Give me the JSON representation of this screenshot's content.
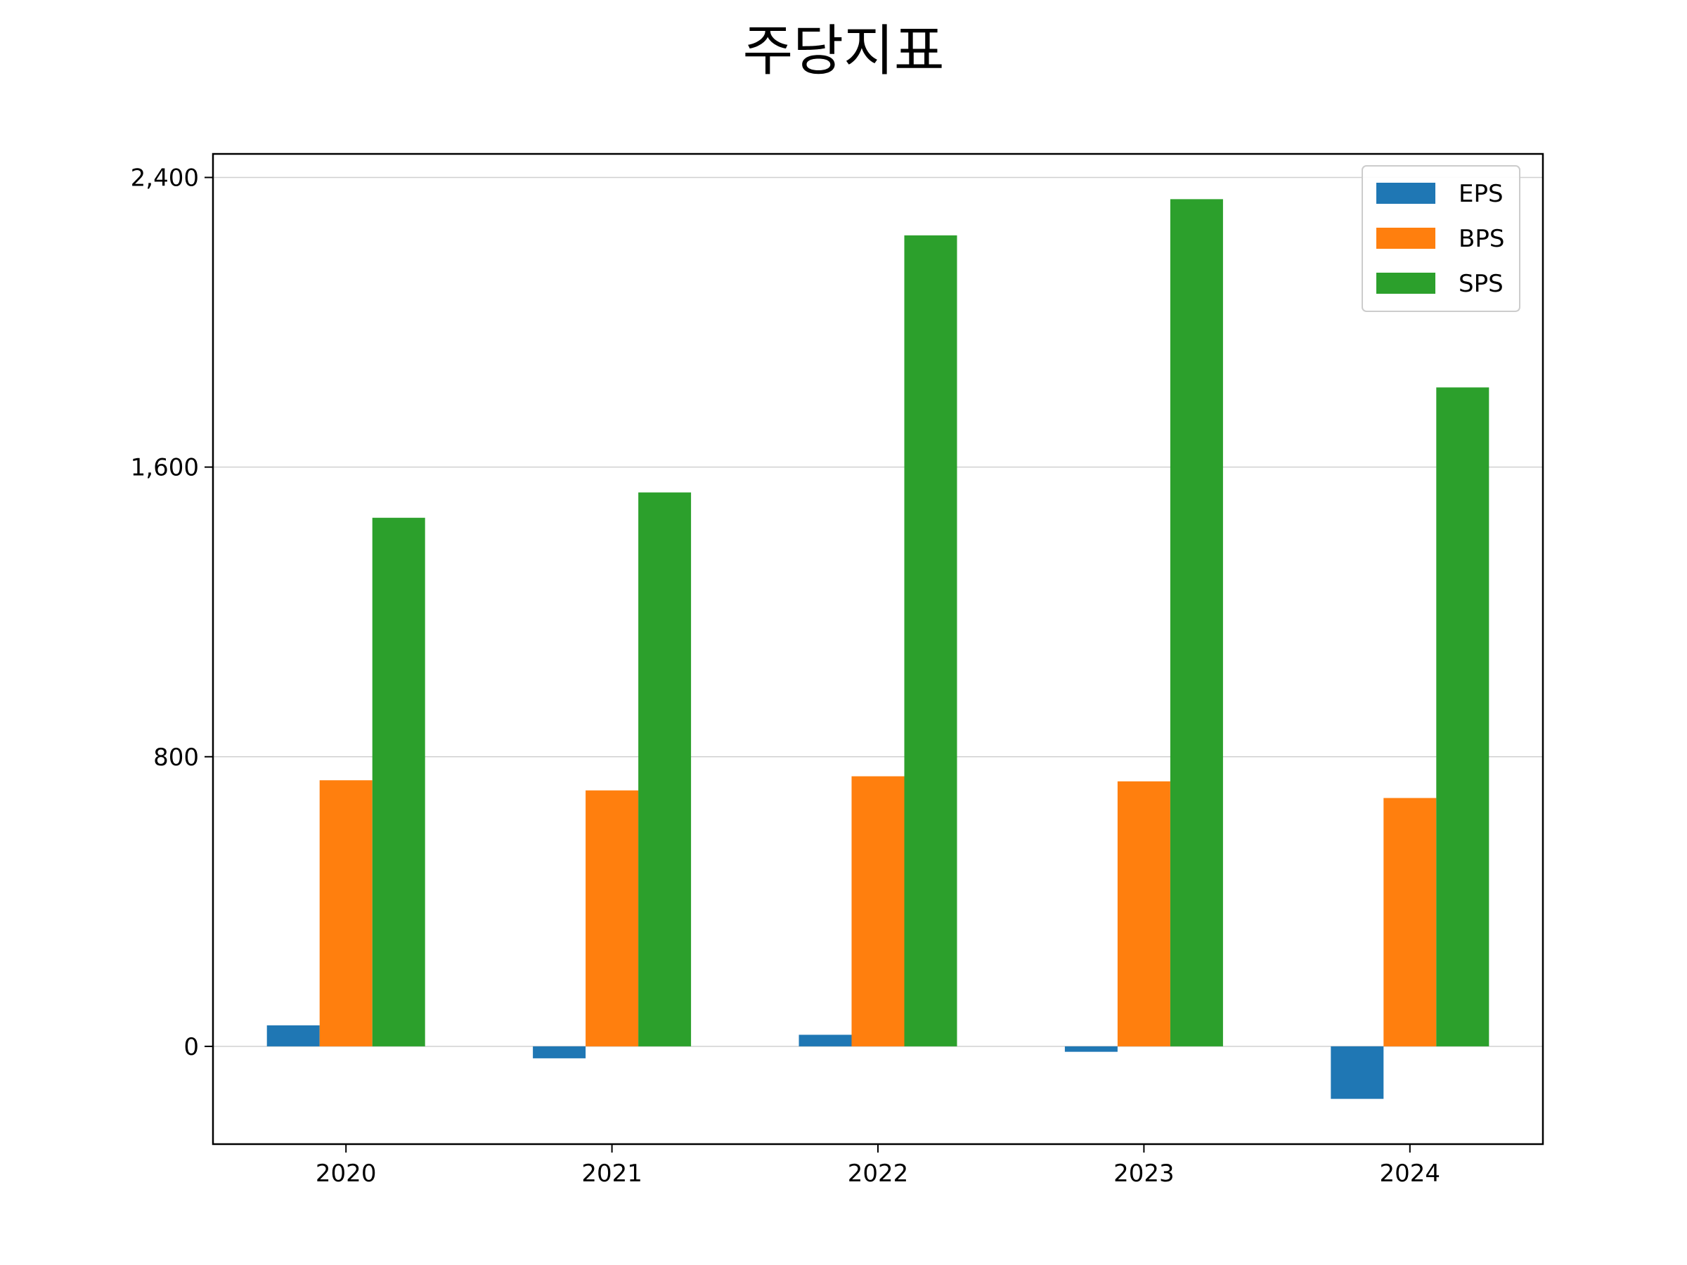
{
  "chart_data": {
    "type": "bar",
    "title": "주당지표",
    "xlabel": "",
    "ylabel": "",
    "categories": [
      "2020",
      "2021",
      "2022",
      "2023",
      "2024"
    ],
    "series": [
      {
        "name": "EPS",
        "color": "#1f77b4",
        "values": [
          58,
          -33,
          32,
          -15,
          -145
        ]
      },
      {
        "name": "BPS",
        "color": "#ff7f0e",
        "values": [
          735,
          707,
          746,
          732,
          686
        ]
      },
      {
        "name": "SPS",
        "color": "#2ca02c",
        "values": [
          1460,
          1530,
          2240,
          2340,
          1820
        ]
      }
    ],
    "ylim": [
      -270,
      2465
    ],
    "yticks": [
      0,
      800,
      1600,
      2400
    ],
    "ytick_labels": [
      "0",
      "800",
      "1,600",
      "2,400"
    ],
    "grid": "y",
    "legend_position": "top-right"
  }
}
